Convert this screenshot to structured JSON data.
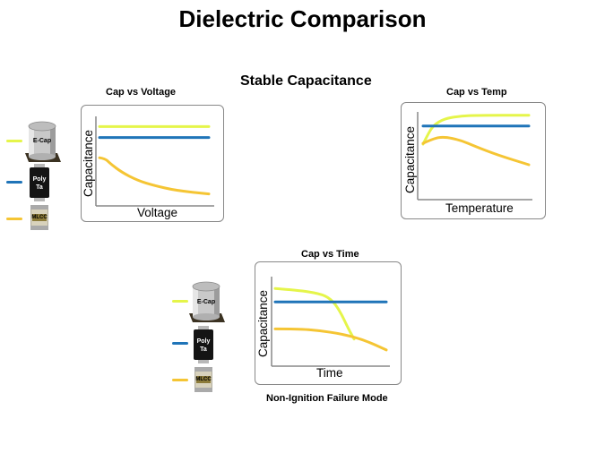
{
  "slide": {
    "title": "Dielectric Comparison",
    "subtitle": "Stable Capacitance",
    "footnote": "Non-Ignition Failure Mode"
  },
  "colors": {
    "ecap": "#e5f54a",
    "poly": "#1f74b8",
    "mlcc": "#f5c534"
  },
  "legend": {
    "items": [
      {
        "label": "E-Cap",
        "color_key": "ecap",
        "icon": "electrolytic-capacitor-icon"
      },
      {
        "label": "Poly Ta",
        "label_line1": "Poly",
        "label_line2": "Ta",
        "color_key": "poly",
        "icon": "polymer-tantalum-capacitor-icon"
      },
      {
        "label": "MLCC",
        "color_key": "mlcc",
        "icon": "mlcc-chip-icon"
      }
    ]
  },
  "chart_data": [
    {
      "type": "line",
      "title": "Cap vs Voltage",
      "xlabel": "Voltage",
      "ylabel": "Capacitance",
      "series": [
        {
          "name": "E-Cap",
          "x": [
            0,
            100
          ],
          "y": [
            90,
            90
          ]
        },
        {
          "name": "Poly Ta",
          "x": [
            0,
            100
          ],
          "y": [
            77,
            77
          ]
        },
        {
          "name": "MLCC",
          "x": [
            0,
            5,
            10,
            20,
            35,
            50,
            70,
            100
          ],
          "y": [
            53,
            52,
            46,
            36,
            26,
            20,
            14,
            10
          ]
        }
      ]
    },
    {
      "type": "line",
      "title": "Cap vs Temp",
      "xlabel": "Temperature",
      "ylabel": "Capacitance",
      "series": [
        {
          "name": "E-Cap",
          "x": [
            0,
            5,
            10,
            20,
            35,
            50,
            100
          ],
          "y": [
            63,
            76,
            86,
            94,
            97,
            98,
            98
          ]
        },
        {
          "name": "Poly Ta",
          "x": [
            0,
            100
          ],
          "y": [
            85,
            85
          ]
        },
        {
          "name": "MLCC",
          "x": [
            0,
            10,
            20,
            35,
            50,
            70,
            100
          ],
          "y": [
            64,
            70,
            72,
            68,
            60,
            50,
            38
          ]
        }
      ]
    },
    {
      "type": "line",
      "title": "Cap vs Time",
      "xlabel": "Time",
      "ylabel": "Capacitance",
      "series": [
        {
          "name": "E-Cap",
          "x": [
            0,
            20,
            40,
            50,
            58,
            66,
            71
          ],
          "y": [
            88,
            86,
            82,
            76,
            62,
            40,
            28
          ]
        },
        {
          "name": "Poly Ta",
          "x": [
            0,
            100
          ],
          "y": [
            72,
            72
          ]
        },
        {
          "name": "MLCC",
          "x": [
            0,
            20,
            40,
            60,
            80,
            100
          ],
          "y": [
            40,
            40,
            38,
            34,
            27,
            15
          ]
        }
      ]
    }
  ]
}
